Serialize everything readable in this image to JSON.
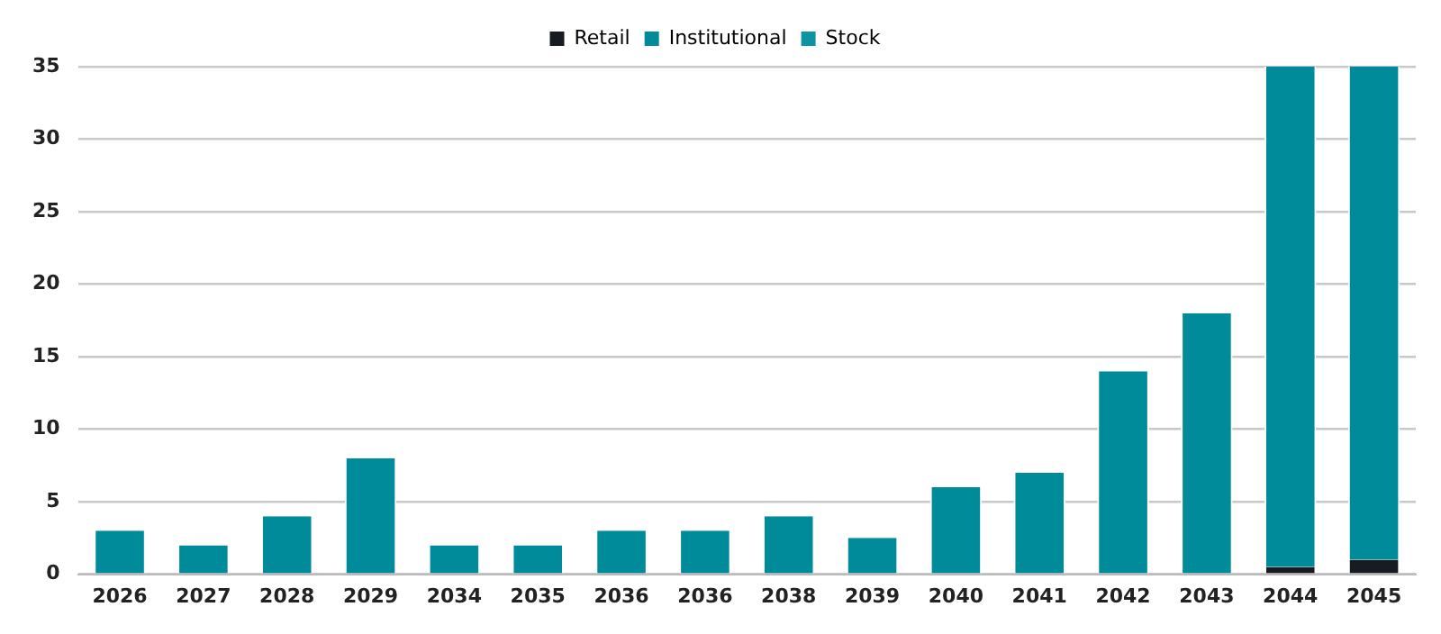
{
  "chart_data": {
    "type": "bar",
    "stacked": true,
    "categories": [
      "2026",
      "2027",
      "2028",
      "2029",
      "2034",
      "2035",
      "2036",
      "2036",
      "2038",
      "2039",
      "2040",
      "2041",
      "2042",
      "2043",
      "2044",
      "2045"
    ],
    "series": [
      {
        "name": "Retail",
        "color": "#161c22",
        "values": [
          0,
          0,
          0,
          0,
          0,
          0,
          0,
          0,
          0,
          0,
          0,
          0,
          0,
          0,
          0.5,
          1
        ]
      },
      {
        "name": "Institutional",
        "color": "#008b9a",
        "values": [
          3,
          2,
          4,
          8,
          2,
          2,
          3,
          3,
          4,
          2.5,
          6,
          7,
          14,
          18,
          34.5,
          34
        ]
      },
      {
        "name": "Stock",
        "color": "#0e93a2",
        "values": [
          null,
          null,
          null,
          null,
          null,
          null,
          null,
          null,
          null,
          null,
          null,
          null,
          null,
          null,
          null,
          null
        ]
      }
    ],
    "ylim": [
      0,
      35
    ],
    "yticks": [
      0,
      5,
      10,
      15,
      20,
      25,
      30,
      35
    ],
    "grid": "y",
    "legend": "top"
  }
}
